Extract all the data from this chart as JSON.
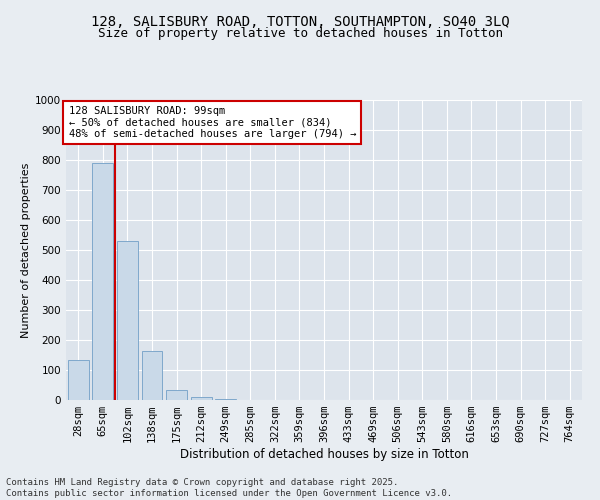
{
  "title1": "128, SALISBURY ROAD, TOTTON, SOUTHAMPTON, SO40 3LQ",
  "title2": "Size of property relative to detached houses in Totton",
  "xlabel": "Distribution of detached houses by size in Totton",
  "ylabel": "Number of detached properties",
  "categories": [
    "28sqm",
    "65sqm",
    "102sqm",
    "138sqm",
    "175sqm",
    "212sqm",
    "249sqm",
    "285sqm",
    "322sqm",
    "359sqm",
    "396sqm",
    "433sqm",
    "469sqm",
    "506sqm",
    "543sqm",
    "580sqm",
    "616sqm",
    "653sqm",
    "690sqm",
    "727sqm",
    "764sqm"
  ],
  "values": [
    135,
    790,
    530,
    165,
    35,
    10,
    2,
    0,
    0,
    0,
    0,
    0,
    0,
    0,
    0,
    0,
    0,
    0,
    0,
    0,
    0
  ],
  "bar_color": "#c9d9e8",
  "bar_edge_color": "#7fa8cc",
  "vline_x": 1.5,
  "vline_color": "#cc0000",
  "annotation_text": "128 SALISBURY ROAD: 99sqm\n← 50% of detached houses are smaller (834)\n48% of semi-detached houses are larger (794) →",
  "annotation_box_color": "#ffffff",
  "annotation_box_edge": "#cc0000",
  "ylim": [
    0,
    1000
  ],
  "yticks": [
    0,
    100,
    200,
    300,
    400,
    500,
    600,
    700,
    800,
    900,
    1000
  ],
  "background_color": "#e8edf2",
  "plot_bg_color": "#dde4ec",
  "grid_color": "#ffffff",
  "footer": "Contains HM Land Registry data © Crown copyright and database right 2025.\nContains public sector information licensed under the Open Government Licence v3.0.",
  "title1_fontsize": 10,
  "title2_fontsize": 9,
  "xlabel_fontsize": 8.5,
  "ylabel_fontsize": 8,
  "tick_fontsize": 7.5,
  "ann_fontsize": 7.5,
  "footer_fontsize": 6.5
}
